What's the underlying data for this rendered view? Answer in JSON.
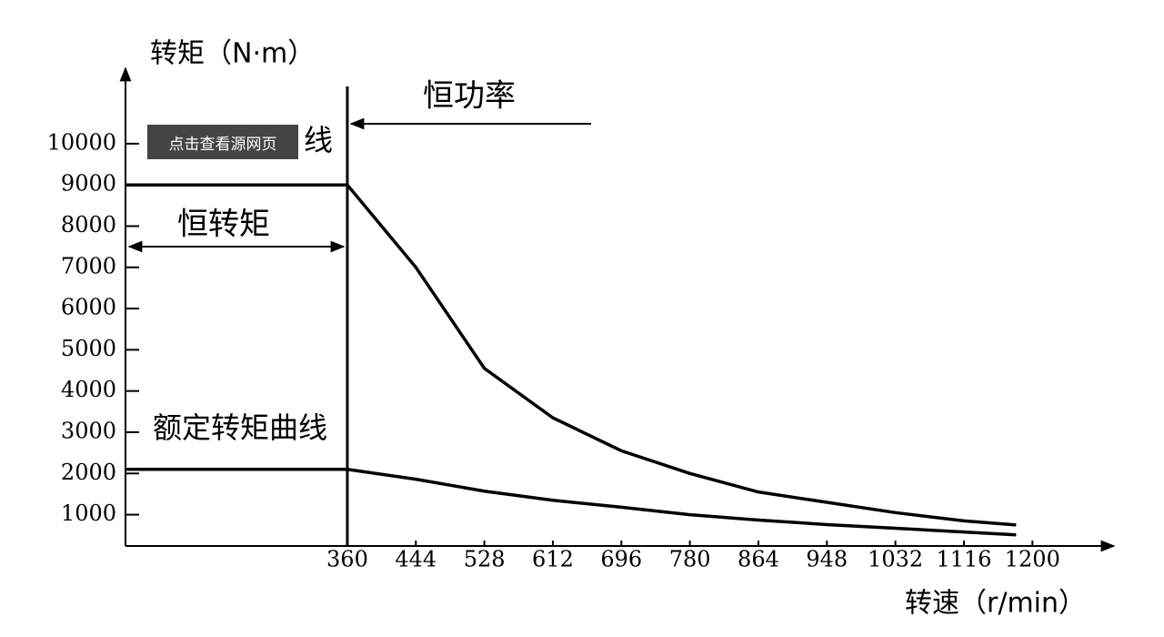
{
  "chart_data": {
    "type": "line",
    "y_label": "转矩（N·m）",
    "x_label": "转速（r/min）",
    "x": [
      88,
      360,
      444,
      528,
      612,
      696,
      780,
      864,
      948,
      1032,
      1116,
      1180
    ],
    "series": [
      {
        "color": "#000000",
        "values": [
          9000,
          9000,
          7000,
          4550,
          3350,
          2550,
          2000,
          1550,
          1300,
          1050,
          850,
          750
        ]
      },
      {
        "color": "#000000",
        "values": [
          2100,
          2100,
          1860,
          1570,
          1350,
          1180,
          1000,
          870,
          760,
          670,
          580,
          510
        ]
      }
    ],
    "xlim": [
      88,
      1300
    ],
    "ylim": [
      240,
      11830
    ],
    "xticks": [
      360,
      444,
      528,
      612,
      696,
      780,
      864,
      948,
      1032,
      1116,
      1200
    ],
    "yticks": [
      1000,
      2000,
      3000,
      4000,
      5000,
      6000,
      7000,
      8000,
      9000,
      10000
    ],
    "vline": 360,
    "annotations": [
      "恒功率",
      "恒转矩",
      "额定转矩曲线",
      "线"
    ],
    "overlay_button": "点击查看源网页"
  }
}
